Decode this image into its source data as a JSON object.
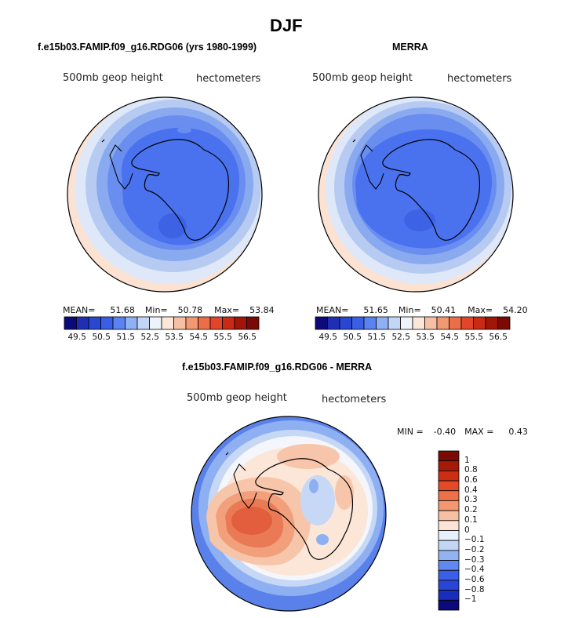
{
  "title": "DJF",
  "panel_left": {
    "subtitle": "f.e15b03.FAMIP.f09_g16.RDG06 (yrs 1980-1999)",
    "left_label": "500mb geop height",
    "right_label": "hectometers",
    "stats": {
      "mean_label": "MEAN=",
      "mean": "51.68",
      "min_label": "Min=",
      "min": "50.78",
      "max_label": "Max=",
      "max": "53.84"
    }
  },
  "panel_right": {
    "subtitle": "MERRA",
    "left_label": "500mb geop height",
    "right_label": "hectometers",
    "stats": {
      "mean_label": "MEAN=",
      "mean": "51.65",
      "min_label": "Min=",
      "min": "50.41",
      "max_label": "Max=",
      "max": "54.20"
    }
  },
  "panel_diff": {
    "subtitle": "f.e15b03.FAMIP.f09_g16.RDG06 - MERRA",
    "left_label": "500mb geop height",
    "right_label": "hectometers",
    "minmax": {
      "min_label": "MIN =",
      "min": "-0.40",
      "max_label": "MAX =",
      "max": "0.43"
    }
  },
  "colorbar_top": {
    "colors": [
      "#0a0a7a",
      "#1e2fb4",
      "#2a47d2",
      "#3a5fe6",
      "#5a82f0",
      "#8eb0f4",
      "#c2d6f6",
      "#eef2fb",
      "#fbe6d8",
      "#f7c0a4",
      "#f29872",
      "#ec6e48",
      "#e2462a",
      "#c82a14",
      "#a21608",
      "#7a0a04"
    ],
    "ticks": [
      "49.5",
      "50.5",
      "51.5",
      "52.5",
      "53.5",
      "54.5",
      "55.5",
      "56.5"
    ]
  },
  "colorbar_diff": {
    "colors": [
      "#7a0a04",
      "#a81a08",
      "#cc2e14",
      "#e24a2a",
      "#ee7048",
      "#f49870",
      "#f8c0a2",
      "#fbe4d6",
      "#e8f0fb",
      "#c4d6f6",
      "#92b2f2",
      "#6088ee",
      "#3a5fe6",
      "#2a45d6",
      "#1a2ebc",
      "#0a0a7a"
    ],
    "ticks": [
      "1",
      "0.8",
      "0.6",
      "0.4",
      "0.3",
      "0.2",
      "0.1",
      "0",
      "−0.1",
      "−0.2",
      "−0.3",
      "−0.4",
      "−0.6",
      "−0.8",
      "−1"
    ]
  },
  "map_colors": {
    "c_outer": "#fbe2d2",
    "c_ring1": "#dfe8f8",
    "c_ring2": "#b7cbf2",
    "c_ring3": "#8aaaf0",
    "c_ring4": "#6a8df0",
    "c_core": "#4a72ee",
    "c_deep": "#3d63e4",
    "d_blue_dark": "#5a80ea",
    "d_blue": "#8eb0f2",
    "d_blue_light": "#c6d8f6",
    "d_white": "#f4f6fb",
    "d_cream": "#fbe6d8",
    "d_pink": "#f7c6aa",
    "d_orange1": "#f2a07c",
    "d_orange2": "#ea7a56",
    "d_red": "#e25e3c"
  }
}
